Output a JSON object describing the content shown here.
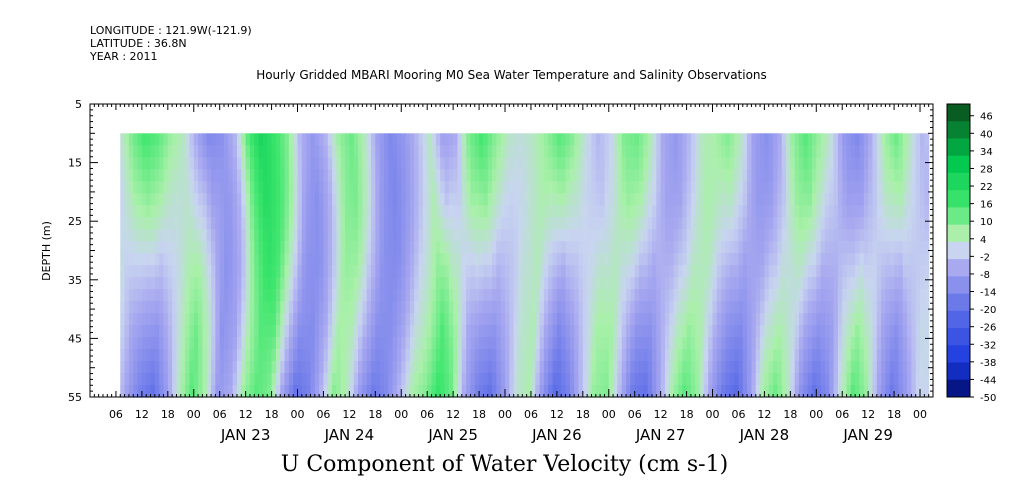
{
  "header": {
    "longitude": "LONGITUDE : 121.9W(-121.9)",
    "latitude": "LATITUDE : 36.8N",
    "year": "YEAR : 2011"
  },
  "chart_data": {
    "type": "heatmap",
    "title": "Hourly Gridded MBARI Mooring M0 Sea Water Temperature and Salinity Observations",
    "xlabel": "U Component of Water Velocity (cm s-1)",
    "ylabel": "DEPTH (m)",
    "x_axis": {
      "start": "Jan 22 2011 00:00",
      "end": "Jan 30 2011 03:00",
      "data_start": "Jan 22 2011 07:00",
      "data_end": "Jan 30 2011 02:00",
      "hour_tick_labels": [
        "06",
        "12",
        "18",
        "00",
        "06",
        "12",
        "18",
        "00",
        "06",
        "12",
        "18",
        "00",
        "06",
        "12",
        "18",
        "00",
        "06",
        "12",
        "18",
        "00",
        "06",
        "12",
        "18",
        "00",
        "06",
        "12",
        "18",
        "00",
        "06",
        "12",
        "18",
        "00"
      ],
      "day_labels": [
        "JAN 23",
        "JAN 24",
        "JAN 25",
        "JAN 26",
        "JAN 27",
        "JAN 28",
        "JAN 29"
      ]
    },
    "y_axis": {
      "range": [
        5,
        55
      ],
      "inverted": true,
      "tick_labels": [
        "5",
        "15",
        "25",
        "35",
        "45",
        "55"
      ],
      "data_depth_range": [
        10,
        55
      ]
    },
    "colorbar": {
      "range": [
        -50,
        50
      ],
      "tick_labels": [
        "46",
        "40",
        "34",
        "28",
        "22",
        "16",
        "10",
        "4",
        "-2",
        "-8",
        "-14",
        "-20",
        "-26",
        "-32",
        "-38",
        "-44",
        "-50"
      ],
      "colors": {
        "max": "#0b4a1a",
        "strong_positive": "#00c850",
        "positive": "#3ee66e",
        "weak_positive": "#aaf0aa",
        "zero": "#c8d4f0",
        "weak_negative": "#a8a8f0",
        "negative": "#6070e8",
        "strong_negative": "#1a3ae0",
        "min": "#000a6a"
      }
    },
    "u_velocity_pattern": {
      "description_hours": [
        0,
        3,
        6,
        9,
        12,
        15,
        18,
        21,
        24,
        27,
        30,
        33,
        36,
        39,
        42,
        45,
        48,
        51,
        54,
        57,
        60,
        63,
        66,
        69,
        72,
        75,
        78,
        81,
        84,
        87,
        90,
        93,
        96,
        99,
        102,
        105,
        108,
        111,
        114,
        117,
        120,
        123,
        126,
        129,
        132,
        135,
        138,
        141,
        144,
        147,
        150,
        153,
        156,
        159,
        162,
        165,
        168,
        171,
        174,
        177,
        180,
        183,
        186,
        189,
        192,
        195
      ],
      "surface_values": [
        0,
        0,
        0,
        10,
        16,
        14,
        8,
        4,
        -6,
        -14,
        -12,
        -4,
        14,
        24,
        18,
        10,
        -4,
        -10,
        -4,
        8,
        12,
        4,
        -8,
        -14,
        -10,
        -4,
        4,
        -8,
        -6,
        10,
        16,
        10,
        4,
        2,
        4,
        8,
        14,
        10,
        2,
        -4,
        0,
        10,
        12,
        6,
        -6,
        -10,
        -4,
        4,
        6,
        10,
        4,
        -8,
        -12,
        -6,
        8,
        14,
        8,
        2,
        -10,
        -14,
        -6,
        6,
        12,
        4,
        -4,
        0
      ],
      "bottom_values": [
        0,
        0,
        0,
        2,
        -8,
        -16,
        -20,
        -10,
        4,
        14,
        6,
        -10,
        -6,
        8,
        14,
        10,
        -8,
        -20,
        -16,
        -4,
        10,
        4,
        -10,
        -18,
        -14,
        -4,
        6,
        10,
        18,
        12,
        -6,
        -16,
        -20,
        -10,
        2,
        6,
        -10,
        -22,
        -16,
        -4,
        8,
        10,
        -4,
        -18,
        -20,
        -8,
        6,
        14,
        8,
        -8,
        -18,
        -22,
        -10,
        6,
        12,
        4,
        -12,
        -20,
        -14,
        2,
        14,
        8,
        -8,
        -18,
        -10,
        0
      ]
    }
  }
}
